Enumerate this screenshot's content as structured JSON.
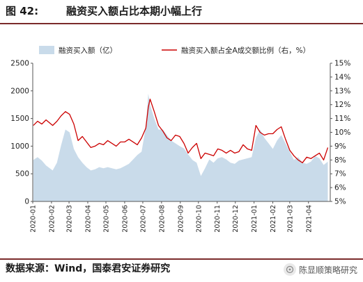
{
  "figure": {
    "number": "图 42:",
    "title": "融资买入额占比本期小幅上行"
  },
  "source": "数据来源：Wind，国泰君安证券研究",
  "watermark": {
    "text": "陈显顺策略研究",
    "icon": "wechat-official-account-icon"
  },
  "chart_data": {
    "type": "area+line",
    "dual_axis": true,
    "y_left_range": [
      0,
      2500
    ],
    "y_left_ticks": [
      "0",
      "500",
      "1000",
      "1500",
      "2000",
      "2500"
    ],
    "y_right_range": [
      5,
      15
    ],
    "y_right_ticks": [
      "5%",
      "6%",
      "7%",
      "8%",
      "9%",
      "10%",
      "11%",
      "12%",
      "13%",
      "14%",
      "15%"
    ],
    "x_tick_labels": [
      "2020-01",
      "2020-02",
      "2020-03",
      "2020-04",
      "2020-05",
      "2020-06",
      "2020-07",
      "2020-08",
      "2020-09",
      "2020-10",
      "2020-11",
      "2020-12",
      "2021-01",
      "2021-02",
      "2021-03",
      "2021-04"
    ],
    "legend": {
      "position": "top",
      "items": [
        "融资买入额（亿）",
        "融资买入额占全A成交额比例（右，%）"
      ]
    },
    "colors": {
      "area": "#c9dbea",
      "line": "#cc0000"
    },
    "grid": false,
    "series": [
      {
        "name": "融资买入额（亿）",
        "axis": "left",
        "kind": "area",
        "x": [
          "2020-01-02",
          "2020-01-09",
          "2020-01-16",
          "2020-01-23",
          "2020-02-03",
          "2020-02-10",
          "2020-02-17",
          "2020-02-24",
          "2020-03-02",
          "2020-03-09",
          "2020-03-16",
          "2020-03-23",
          "2020-03-30",
          "2020-04-06",
          "2020-04-13",
          "2020-04-20",
          "2020-04-27",
          "2020-05-04",
          "2020-05-11",
          "2020-05-18",
          "2020-05-25",
          "2020-06-01",
          "2020-06-08",
          "2020-06-15",
          "2020-06-22",
          "2020-06-29",
          "2020-07-06",
          "2020-07-10",
          "2020-07-13",
          "2020-07-20",
          "2020-07-27",
          "2020-08-03",
          "2020-08-10",
          "2020-08-17",
          "2020-08-24",
          "2020-08-31",
          "2020-09-07",
          "2020-09-14",
          "2020-09-21",
          "2020-09-28",
          "2020-10-05",
          "2020-10-12",
          "2020-10-19",
          "2020-10-26",
          "2020-11-02",
          "2020-11-09",
          "2020-11-16",
          "2020-11-23",
          "2020-11-30",
          "2020-12-07",
          "2020-12-14",
          "2020-12-21",
          "2020-12-28",
          "2021-01-04",
          "2021-01-11",
          "2021-01-18",
          "2021-01-25",
          "2021-02-01",
          "2021-02-08",
          "2021-02-15",
          "2021-02-22",
          "2021-03-01",
          "2021-03-08",
          "2021-03-15",
          "2021-03-22",
          "2021-03-29",
          "2021-04-05",
          "2021-04-12",
          "2021-04-19",
          "2021-04-26",
          "2021-05-03"
        ],
        "values": [
          750,
          800,
          740,
          650,
          560,
          700,
          1020,
          1300,
          1250,
          950,
          800,
          700,
          620,
          560,
          580,
          620,
          600,
          620,
          600,
          580,
          600,
          640,
          680,
          760,
          840,
          900,
          1350,
          1950,
          1750,
          1500,
          1300,
          1300,
          1200,
          1100,
          1050,
          1000,
          960,
          850,
          750,
          700,
          460,
          600,
          760,
          700,
          780,
          800,
          760,
          700,
          680,
          740,
          760,
          780,
          800,
          1150,
          1300,
          1150,
          1050,
          950,
          1100,
          1200,
          1050,
          900,
          750,
          800,
          700,
          680,
          720,
          820,
          780,
          660,
          720
        ]
      },
      {
        "name": "融资买入额占全A成交额比例（右，%）",
        "axis": "right",
        "kind": "line",
        "x": [
          "2020-01-02",
          "2020-01-09",
          "2020-01-16",
          "2020-01-23",
          "2020-02-03",
          "2020-02-10",
          "2020-02-17",
          "2020-02-24",
          "2020-03-02",
          "2020-03-09",
          "2020-03-16",
          "2020-03-23",
          "2020-03-30",
          "2020-04-06",
          "2020-04-13",
          "2020-04-20",
          "2020-04-27",
          "2020-05-04",
          "2020-05-11",
          "2020-05-18",
          "2020-05-25",
          "2020-06-01",
          "2020-06-08",
          "2020-06-15",
          "2020-06-22",
          "2020-06-29",
          "2020-07-06",
          "2020-07-10",
          "2020-07-13",
          "2020-07-20",
          "2020-07-27",
          "2020-08-03",
          "2020-08-10",
          "2020-08-17",
          "2020-08-24",
          "2020-08-31",
          "2020-09-07",
          "2020-09-14",
          "2020-09-21",
          "2020-09-28",
          "2020-10-05",
          "2020-10-12",
          "2020-10-19",
          "2020-10-26",
          "2020-11-02",
          "2020-11-09",
          "2020-11-16",
          "2020-11-23",
          "2020-11-30",
          "2020-12-07",
          "2020-12-14",
          "2020-12-21",
          "2020-12-28",
          "2021-01-04",
          "2021-01-11",
          "2021-01-18",
          "2021-01-25",
          "2021-02-01",
          "2021-02-08",
          "2021-02-15",
          "2021-02-22",
          "2021-03-01",
          "2021-03-08",
          "2021-03-15",
          "2021-03-22",
          "2021-03-29",
          "2021-04-05",
          "2021-04-12",
          "2021-04-19",
          "2021-04-26",
          "2021-05-03"
        ],
        "values": [
          10.5,
          10.8,
          10.6,
          10.9,
          10.5,
          10.8,
          11.2,
          11.5,
          11.3,
          10.6,
          9.4,
          9.7,
          9.3,
          8.9,
          9.0,
          9.2,
          9.1,
          9.4,
          9.2,
          9.0,
          9.3,
          9.3,
          9.5,
          9.3,
          9.1,
          9.6,
          10.3,
          11.8,
          12.4,
          11.5,
          10.5,
          10.1,
          9.6,
          9.4,
          9.8,
          9.7,
          9.2,
          8.5,
          8.9,
          9.2,
          8.1,
          8.5,
          8.4,
          8.3,
          8.8,
          8.7,
          8.5,
          8.7,
          8.5,
          8.6,
          9.1,
          8.8,
          8.7,
          10.5,
          10.0,
          9.8,
          9.9,
          9.9,
          10.2,
          10.4,
          9.5,
          8.7,
          8.3,
          8.0,
          7.8,
          8.2,
          8.1,
          8.3,
          8.5,
          8.0,
          8.9
        ]
      }
    ]
  }
}
